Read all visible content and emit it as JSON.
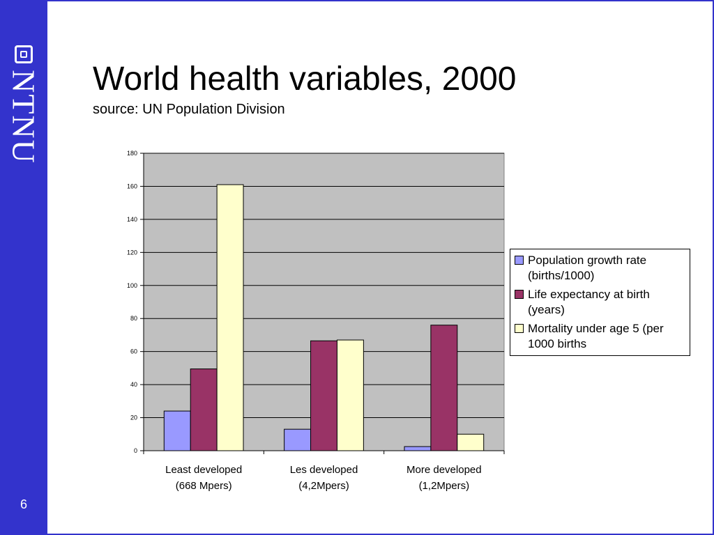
{
  "slide": {
    "title": "World health variables, 2000",
    "subtitle": "source: UN Population Division",
    "brand": "NTNU",
    "page_number": "6",
    "colors": {
      "sidebar": "#3333cc",
      "plot_bg": "#c0c0c0"
    }
  },
  "chart_data": {
    "type": "bar",
    "categories": [
      [
        "Least developed",
        "(668 Mpers)"
      ],
      [
        "Les developed",
        "(4,2Mpers)"
      ],
      [
        "More developed",
        "(1,2Mpers)"
      ]
    ],
    "series": [
      {
        "name": "Population growth rate (births/1000)",
        "legend_lines": [
          "Population growth rate",
          "(births/1000)"
        ],
        "color": "#9999ff",
        "values": [
          24,
          13,
          2.5
        ]
      },
      {
        "name": "Life expectancy at birth (years)",
        "legend_lines": [
          "Life expectancy at birth",
          "(years)"
        ],
        "color": "#993366",
        "values": [
          49.5,
          66.5,
          76
        ]
      },
      {
        "name": "Mortality under age 5 (per 1000 births",
        "legend_lines": [
          "Mortality under age 5 (per",
          "1000 births"
        ],
        "color": "#ffffcc",
        "values": [
          161,
          67,
          10
        ]
      }
    ],
    "ylim": [
      0,
      180
    ],
    "yticks": [
      0,
      20,
      40,
      60,
      80,
      100,
      120,
      140,
      160,
      180
    ],
    "grid": true,
    "legend_position": "right"
  }
}
